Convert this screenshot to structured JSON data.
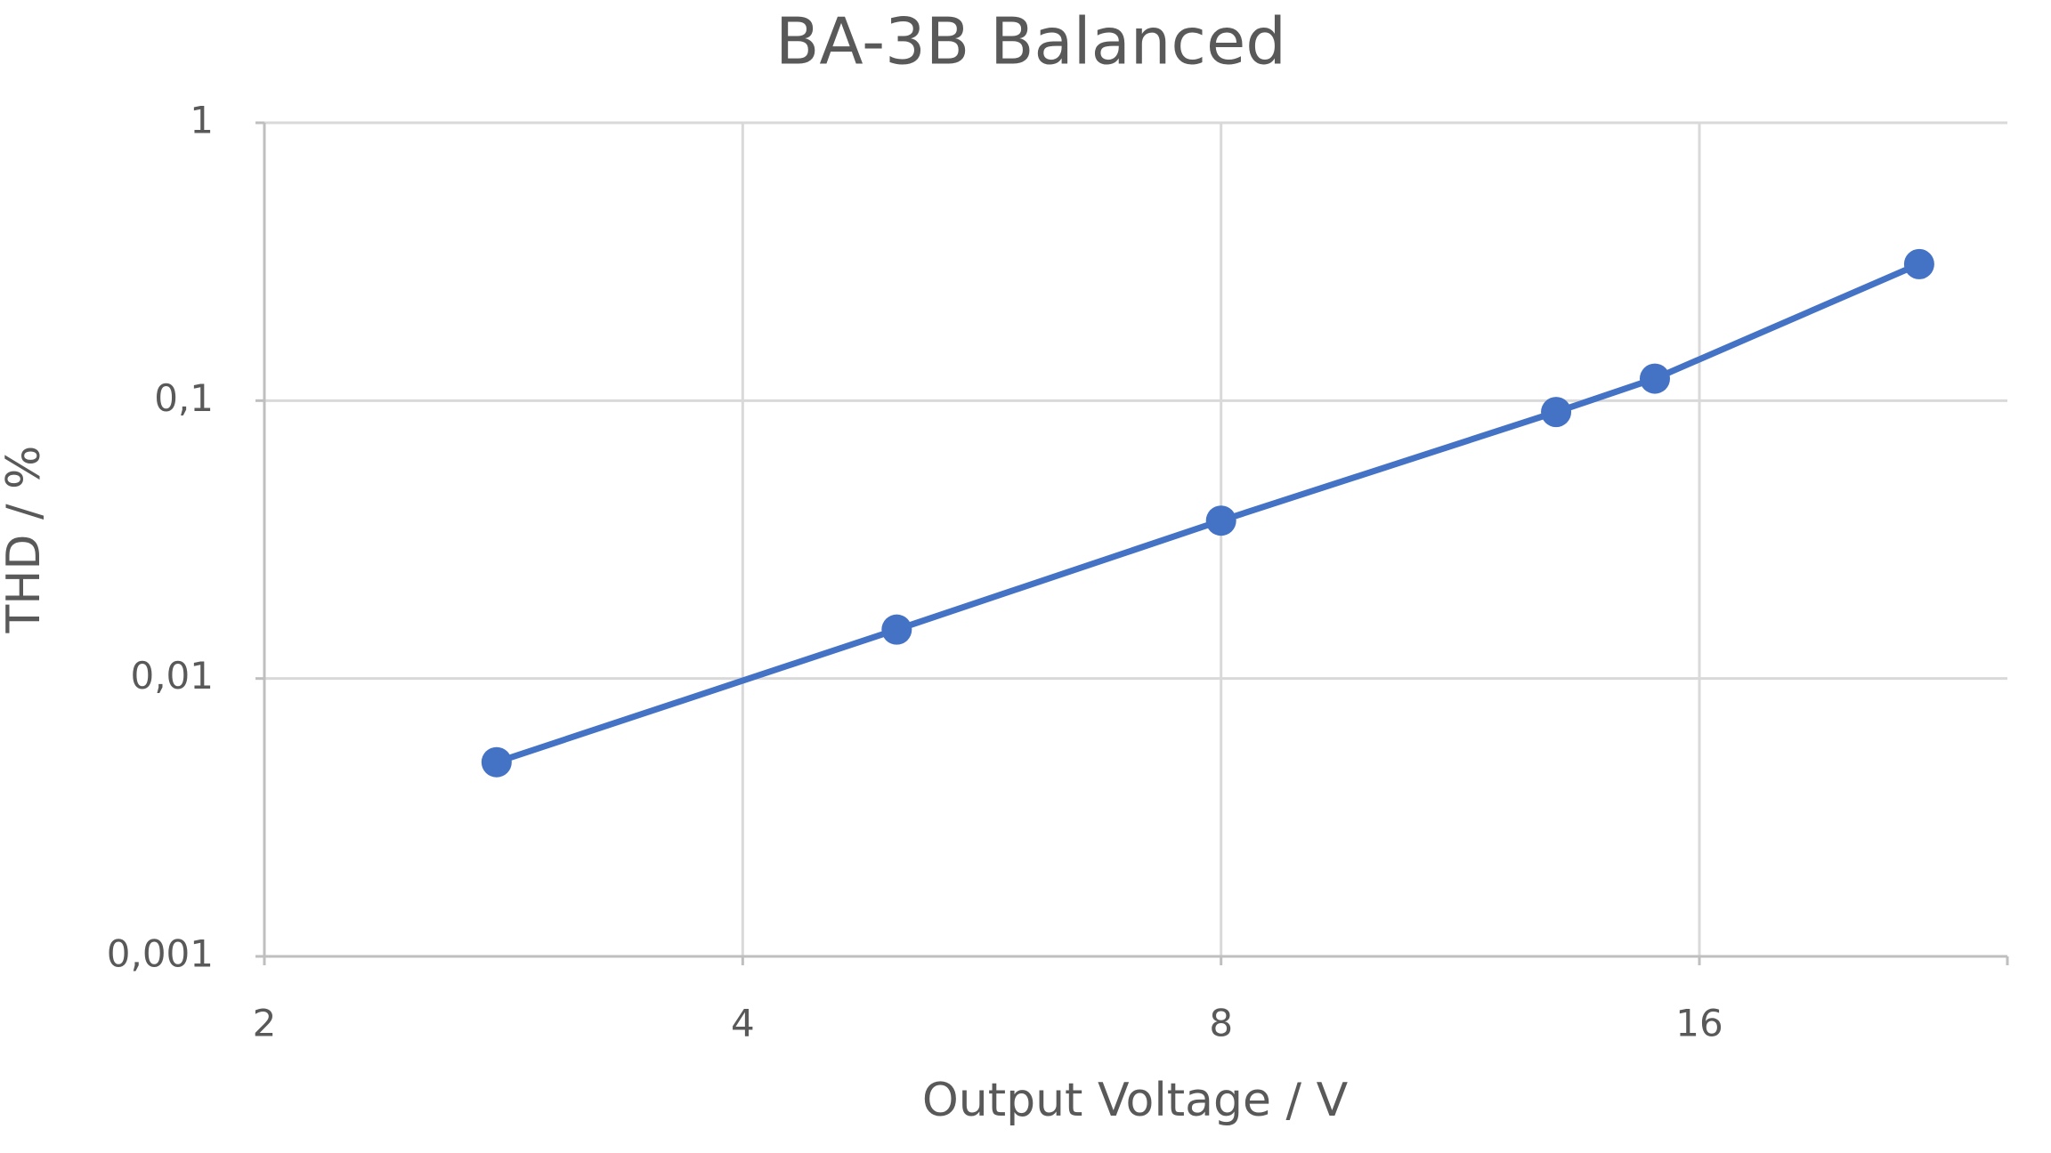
{
  "chart_data": {
    "type": "line",
    "title": "BA-3B Balanced",
    "x_label": "Output Voltage / V",
    "y_label": "THD / %",
    "x": [
      2.8,
      5,
      8,
      13,
      15,
      22
    ],
    "series": [
      {
        "color": "#4472c4",
        "values": [
          0.005,
          0.015,
          0.037,
          0.091,
          0.12,
          0.31
        ]
      }
    ],
    "xscale": "log",
    "xbase": 2,
    "xlim": [
      2,
      25
    ],
    "xticks": [
      2,
      4,
      8,
      16
    ],
    "yscale": "log",
    "ybase": 10,
    "ylim": [
      0.001,
      1
    ],
    "yticks": [
      {
        "value": 0.001,
        "label": "0,001"
      },
      {
        "value": 0.01,
        "label": "0,01"
      },
      {
        "value": 0.1,
        "label": "0,1"
      },
      1
    ],
    "grid": true
  }
}
